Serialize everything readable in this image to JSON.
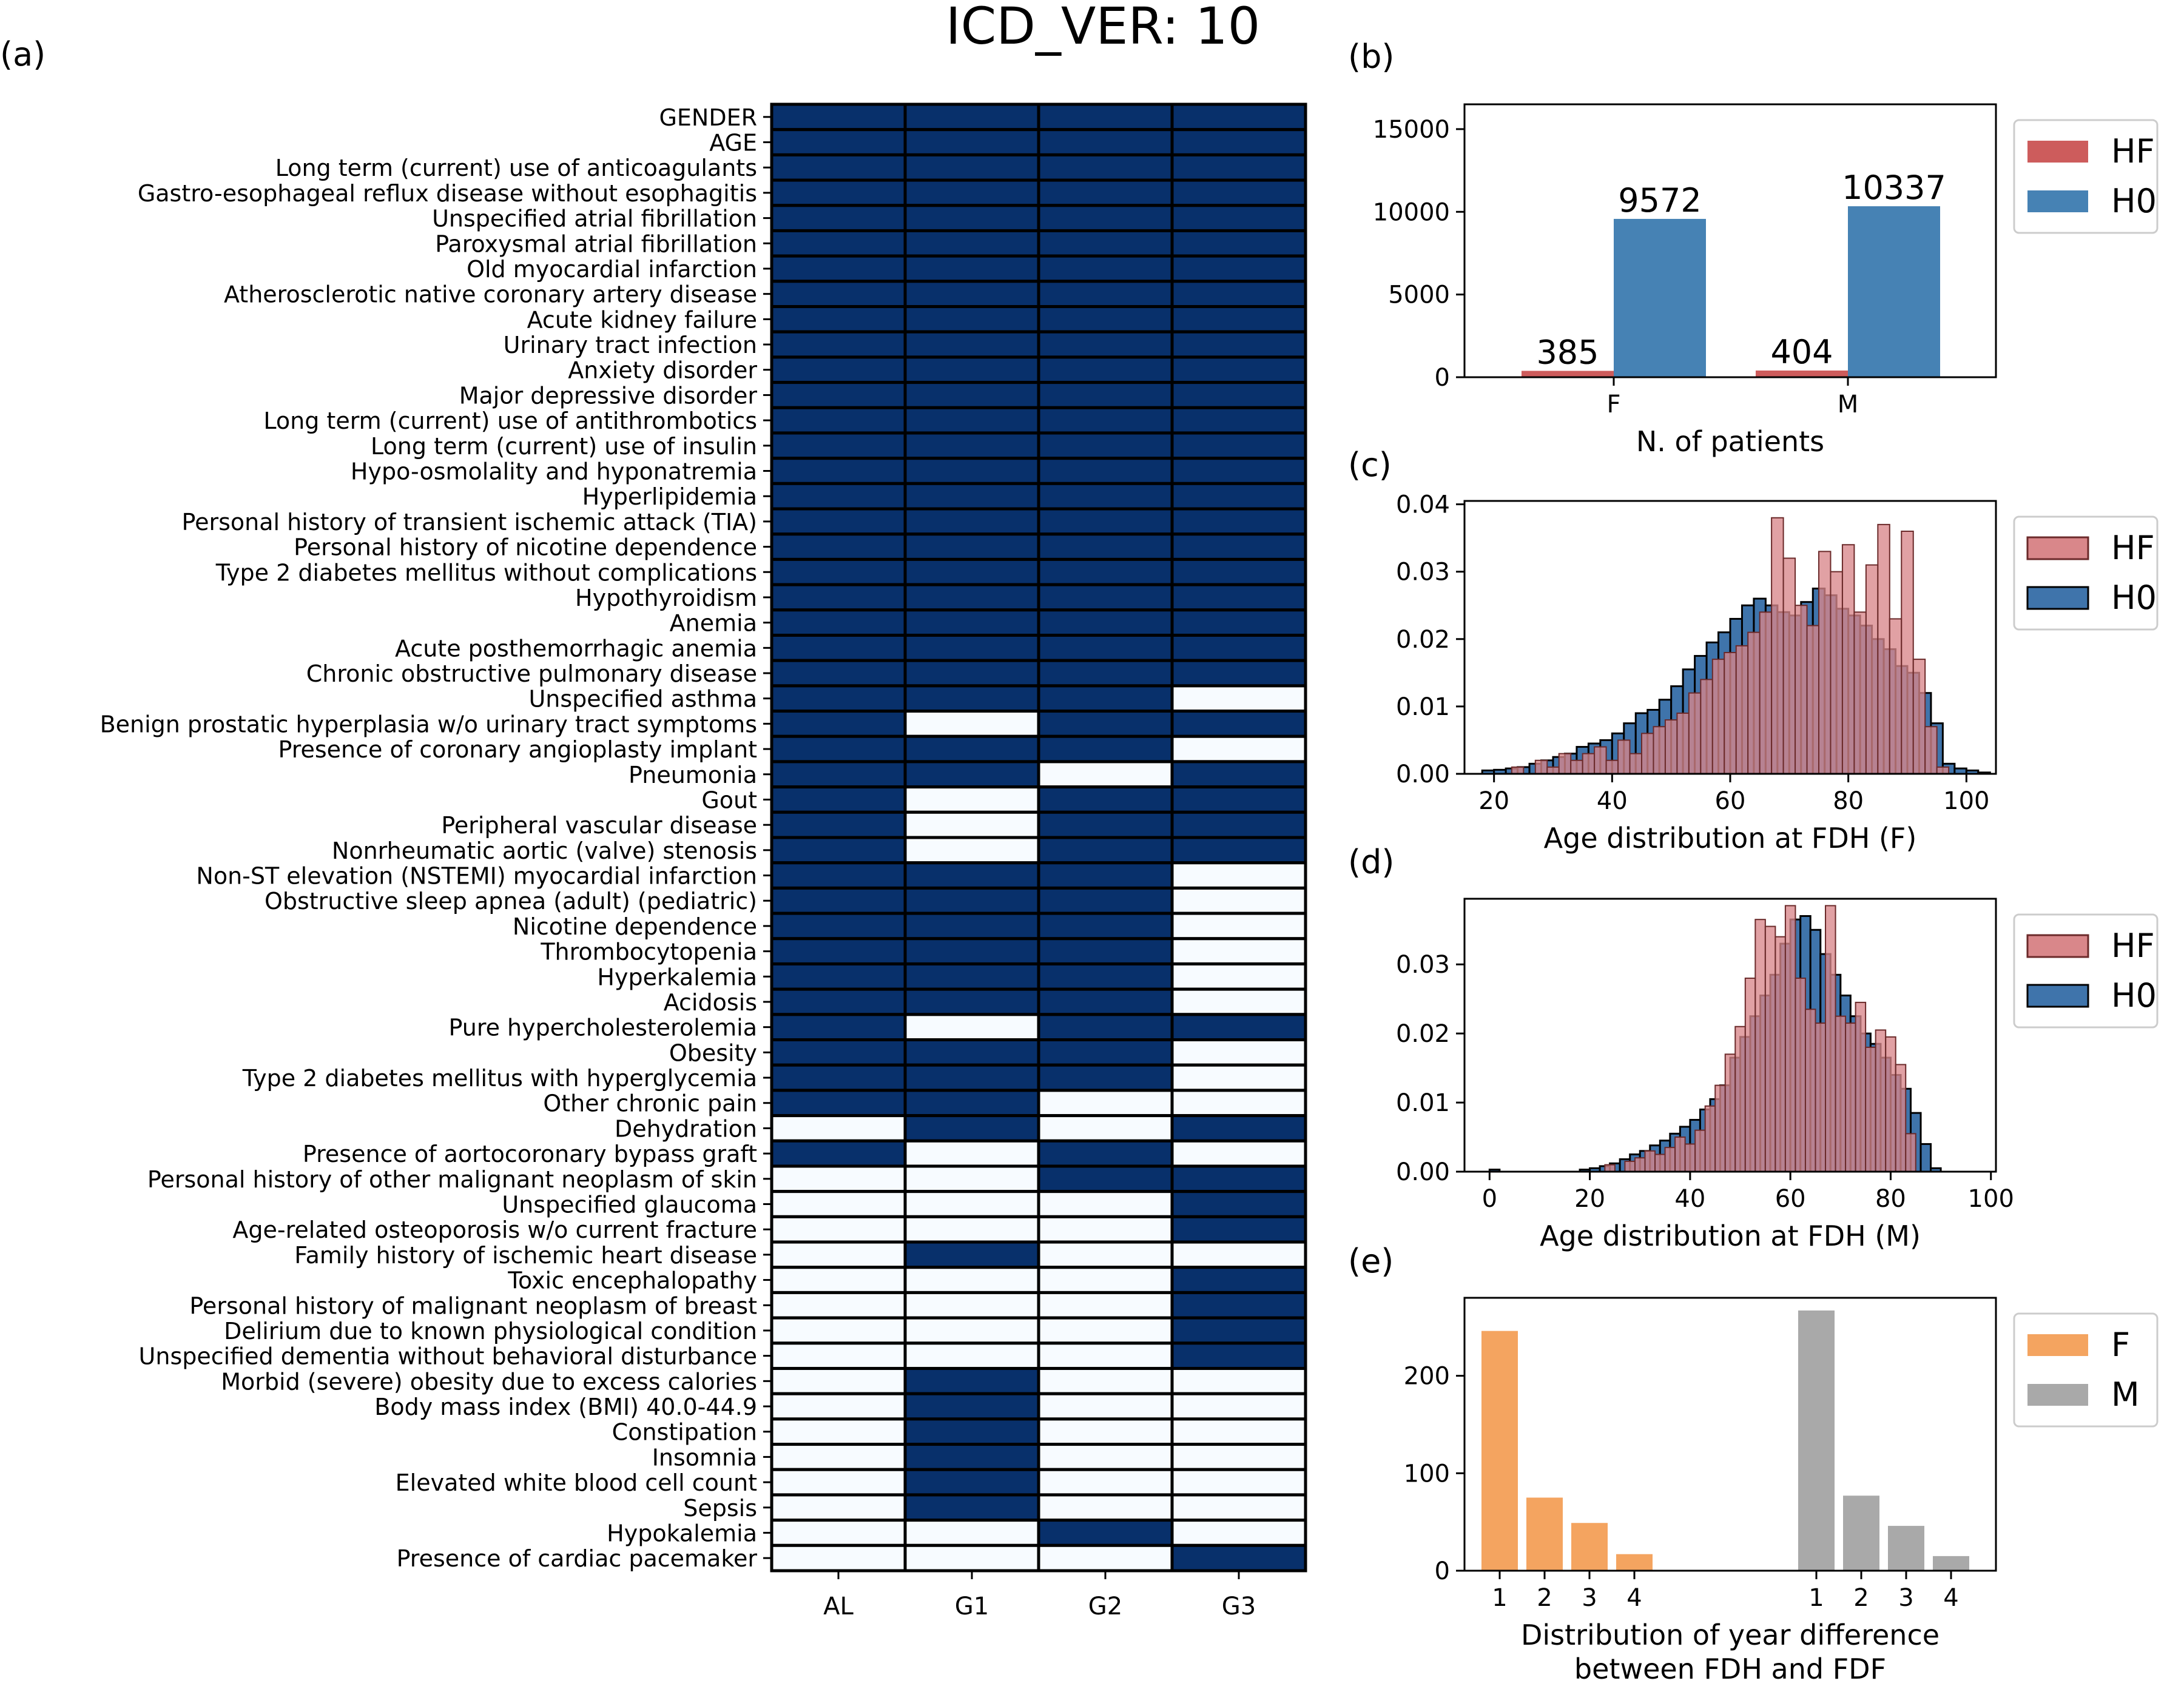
{
  "figure_title": "ICD_VER: 10",
  "panel_labels": {
    "a": "(a)",
    "b": "(b)",
    "c": "(c)",
    "d": "(d)",
    "e": "(e)"
  },
  "colors": {
    "dark_navy": "#08306b",
    "light": "#f7fbff",
    "hf_red": "#cd5c5c",
    "h0_blue": "#4682b4",
    "hf_hist": "#d9878a",
    "h0_hist": "#3f74ab",
    "f_orange": "#f4a460",
    "m_gray": "#a9a9a9"
  },
  "chart_data": [
    {
      "type": "heatmap",
      "panel": "(a)",
      "columns": [
        "AL",
        "G1",
        "G2",
        "G3"
      ],
      "rows": [
        {
          "label": "GENDER",
          "values": [
            1,
            1,
            1,
            1
          ]
        },
        {
          "label": "AGE",
          "values": [
            1,
            1,
            1,
            1
          ]
        },
        {
          "label": "Long term (current) use of anticoagulants",
          "values": [
            1,
            1,
            1,
            1
          ]
        },
        {
          "label": "Gastro-esophageal reflux disease without esophagitis",
          "values": [
            1,
            1,
            1,
            1
          ]
        },
        {
          "label": "Unspecified atrial fibrillation",
          "values": [
            1,
            1,
            1,
            1
          ]
        },
        {
          "label": "Paroxysmal atrial fibrillation",
          "values": [
            1,
            1,
            1,
            1
          ]
        },
        {
          "label": "Old myocardial infarction",
          "values": [
            1,
            1,
            1,
            1
          ]
        },
        {
          "label": "Atherosclerotic native coronary artery disease",
          "values": [
            1,
            1,
            1,
            1
          ]
        },
        {
          "label": "Acute kidney failure",
          "values": [
            1,
            1,
            1,
            1
          ]
        },
        {
          "label": "Urinary tract infection",
          "values": [
            1,
            1,
            1,
            1
          ]
        },
        {
          "label": "Anxiety disorder",
          "values": [
            1,
            1,
            1,
            1
          ]
        },
        {
          "label": "Major depressive disorder",
          "values": [
            1,
            1,
            1,
            1
          ]
        },
        {
          "label": "Long term (current) use of antithrombotics",
          "values": [
            1,
            1,
            1,
            1
          ]
        },
        {
          "label": "Long term (current) use of insulin",
          "values": [
            1,
            1,
            1,
            1
          ]
        },
        {
          "label": "Hypo-osmolality and hyponatremia",
          "values": [
            1,
            1,
            1,
            1
          ]
        },
        {
          "label": "Hyperlipidemia",
          "values": [
            1,
            1,
            1,
            1
          ]
        },
        {
          "label": "Personal history of transient ischemic attack (TIA)",
          "values": [
            1,
            1,
            1,
            1
          ]
        },
        {
          "label": "Personal history of nicotine dependence",
          "values": [
            1,
            1,
            1,
            1
          ]
        },
        {
          "label": "Type 2 diabetes mellitus without complications",
          "values": [
            1,
            1,
            1,
            1
          ]
        },
        {
          "label": "Hypothyroidism",
          "values": [
            1,
            1,
            1,
            1
          ]
        },
        {
          "label": "Anemia",
          "values": [
            1,
            1,
            1,
            1
          ]
        },
        {
          "label": "Acute posthemorrhagic anemia",
          "values": [
            1,
            1,
            1,
            1
          ]
        },
        {
          "label": "Chronic obstructive pulmonary disease",
          "values": [
            1,
            1,
            1,
            1
          ]
        },
        {
          "label": "Unspecified asthma",
          "values": [
            1,
            1,
            1,
            0
          ]
        },
        {
          "label": "Benign prostatic hyperplasia w/o urinary tract symptoms",
          "values": [
            1,
            0,
            1,
            1
          ]
        },
        {
          "label": "Presence of coronary angioplasty implant",
          "values": [
            1,
            1,
            1,
            0
          ]
        },
        {
          "label": "Pneumonia",
          "values": [
            1,
            1,
            0,
            1
          ]
        },
        {
          "label": "Gout",
          "values": [
            1,
            0,
            1,
            1
          ]
        },
        {
          "label": "Peripheral vascular disease",
          "values": [
            1,
            0,
            1,
            1
          ]
        },
        {
          "label": "Nonrheumatic aortic (valve) stenosis",
          "values": [
            1,
            0,
            1,
            1
          ]
        },
        {
          "label": "Non-ST elevation (NSTEMI) myocardial infarction",
          "values": [
            1,
            1,
            1,
            0
          ]
        },
        {
          "label": "Obstructive sleep apnea (adult) (pediatric)",
          "values": [
            1,
            1,
            1,
            0
          ]
        },
        {
          "label": "Nicotine dependence",
          "values": [
            1,
            1,
            1,
            0
          ]
        },
        {
          "label": "Thrombocytopenia",
          "values": [
            1,
            1,
            1,
            0
          ]
        },
        {
          "label": "Hyperkalemia",
          "values": [
            1,
            1,
            1,
            0
          ]
        },
        {
          "label": "Acidosis",
          "values": [
            1,
            1,
            1,
            0
          ]
        },
        {
          "label": "Pure hypercholesterolemia",
          "values": [
            1,
            0,
            1,
            1
          ]
        },
        {
          "label": "Obesity",
          "values": [
            1,
            1,
            1,
            0
          ]
        },
        {
          "label": "Type 2 diabetes mellitus with hyperglycemia",
          "values": [
            1,
            1,
            1,
            0
          ]
        },
        {
          "label": "Other chronic pain",
          "values": [
            1,
            1,
            0,
            0
          ]
        },
        {
          "label": "Dehydration",
          "values": [
            0,
            1,
            0,
            1
          ]
        },
        {
          "label": "Presence of aortocoronary bypass graft",
          "values": [
            1,
            0,
            1,
            0
          ]
        },
        {
          "label": "Personal history of other malignant neoplasm of skin",
          "values": [
            0,
            0,
            1,
            1
          ]
        },
        {
          "label": "Unspecified glaucoma",
          "values": [
            0,
            0,
            0,
            1
          ]
        },
        {
          "label": "Age-related osteoporosis w/o current fracture",
          "values": [
            0,
            0,
            0,
            1
          ]
        },
        {
          "label": "Family history of ischemic heart disease",
          "values": [
            0,
            1,
            0,
            0
          ]
        },
        {
          "label": "Toxic encephalopathy",
          "values": [
            0,
            0,
            0,
            1
          ]
        },
        {
          "label": "Personal history of malignant neoplasm of breast",
          "values": [
            0,
            0,
            0,
            1
          ]
        },
        {
          "label": "Delirium due to known physiological condition",
          "values": [
            0,
            0,
            0,
            1
          ]
        },
        {
          "label": "Unspecified dementia without behavioral disturbance",
          "values": [
            0,
            0,
            0,
            1
          ]
        },
        {
          "label": "Morbid (severe) obesity due to excess calories",
          "values": [
            0,
            1,
            0,
            0
          ]
        },
        {
          "label": "Body mass index (BMI) 40.0-44.9",
          "values": [
            0,
            1,
            0,
            0
          ]
        },
        {
          "label": "Constipation",
          "values": [
            0,
            1,
            0,
            0
          ]
        },
        {
          "label": "Insomnia",
          "values": [
            0,
            1,
            0,
            0
          ]
        },
        {
          "label": "Elevated white blood cell count",
          "values": [
            0,
            1,
            0,
            0
          ]
        },
        {
          "label": "Sepsis",
          "values": [
            0,
            1,
            0,
            0
          ]
        },
        {
          "label": "Hypokalemia",
          "values": [
            0,
            0,
            1,
            0
          ]
        },
        {
          "label": "Presence of cardiac pacemaker",
          "values": [
            0,
            0,
            0,
            1
          ]
        }
      ]
    },
    {
      "type": "bar",
      "panel": "(b)",
      "categories": [
        "F",
        "M"
      ],
      "series": [
        {
          "name": "HF",
          "values": [
            385,
            404
          ]
        },
        {
          "name": "H0",
          "values": [
            9572,
            10337
          ]
        }
      ],
      "data_labels": [
        [
          "385",
          "404"
        ],
        [
          "9572",
          "10337"
        ]
      ],
      "xlabel": "N. of patients",
      "ylim": [
        0,
        16500
      ],
      "yticks": [
        0,
        5000,
        10000,
        15000
      ],
      "legend": "outside right"
    },
    {
      "type": "histogram",
      "panel": "(c)",
      "xlabel": "Age distribution at FDH (F)",
      "xlim": [
        15,
        105
      ],
      "ylim": [
        0,
        0.0405
      ],
      "xticks": [
        20,
        40,
        60,
        80,
        100
      ],
      "yticks": [
        0.0,
        0.01,
        0.02,
        0.03,
        0.04
      ],
      "ytick_labels": [
        "0.00",
        "0.01",
        "0.02",
        "0.03",
        "0.04"
      ],
      "legend": "outside right",
      "series": [
        {
          "name": "H0",
          "bin_start": 18,
          "bin_width": 2,
          "values": [
            0.0005,
            0.0006,
            0.0008,
            0.001,
            0.0015,
            0.002,
            0.0025,
            0.003,
            0.004,
            0.0045,
            0.005,
            0.006,
            0.0075,
            0.009,
            0.0095,
            0.011,
            0.013,
            0.0155,
            0.0175,
            0.0195,
            0.021,
            0.023,
            0.025,
            0.026,
            0.025,
            0.024,
            0.0235,
            0.0255,
            0.0275,
            0.0265,
            0.0245,
            0.0235,
            0.022,
            0.02,
            0.0185,
            0.016,
            0.015,
            0.012,
            0.0075,
            0.0015,
            0.0008,
            0.0005,
            0.0002
          ]
        },
        {
          "name": "HF",
          "bin_start": 19,
          "bin_width": 2,
          "values": [
            0,
            0,
            0.001,
            0,
            0.002,
            0.001,
            0.003,
            0.002,
            0.003,
            0.004,
            0.002,
            0.005,
            0.003,
            0.006,
            0.007,
            0.008,
            0.009,
            0.012,
            0.014,
            0.017,
            0.018,
            0.019,
            0.021,
            0.024,
            0.038,
            0.032,
            0.025,
            0.022,
            0.033,
            0.03,
            0.034,
            0.024,
            0.031,
            0.037,
            0.023,
            0.036,
            0.017,
            0.007,
            0.001,
            0,
            0,
            0
          ]
        }
      ]
    },
    {
      "type": "histogram",
      "panel": "(d)",
      "xlabel": "Age distribution at FDH (M)",
      "xlim": [
        -5,
        101
      ],
      "ylim": [
        0,
        0.0395
      ],
      "xticks": [
        0,
        20,
        40,
        60,
        80,
        100
      ],
      "yticks": [
        0.0,
        0.01,
        0.02,
        0.03
      ],
      "ytick_labels": [
        "0.00",
        "0.01",
        "0.02",
        "0.03"
      ],
      "legend": "outside right",
      "series": [
        {
          "name": "H0",
          "bin_start": 0,
          "bin_width": 2,
          "values": [
            0.0003,
            0,
            0,
            0,
            0,
            0,
            0,
            0,
            0,
            0.0003,
            0.0005,
            0.0008,
            0.0012,
            0.0018,
            0.0025,
            0.003,
            0.0038,
            0.0045,
            0.0055,
            0.0065,
            0.0075,
            0.009,
            0.0105,
            0.0125,
            0.0165,
            0.0195,
            0.0225,
            0.0255,
            0.0285,
            0.033,
            0.0365,
            0.037,
            0.035,
            0.0315,
            0.0285,
            0.0255,
            0.0225,
            0.02,
            0.0185,
            0.0165,
            0.014,
            0.012,
            0.0085,
            0.004,
            0.0005
          ]
        },
        {
          "name": "HF",
          "bin_start": 21,
          "bin_width": 2,
          "values": [
            0,
            0.001,
            0,
            0.0015,
            0.002,
            0.003,
            0.0025,
            0.0035,
            0.005,
            0.004,
            0.006,
            0.0095,
            0.0125,
            0.017,
            0.021,
            0.028,
            0.0365,
            0.0355,
            0.034,
            0.0385,
            0.028,
            0.0235,
            0.0215,
            0.0385,
            0.0225,
            0.0215,
            0.0245,
            0.018,
            0.0205,
            0.0195,
            0.0155,
            0.0055
          ]
        }
      ]
    },
    {
      "type": "bar",
      "panel": "(e)",
      "groups": [
        {
          "name": "F",
          "categories": [
            "1",
            "2",
            "3",
            "4"
          ],
          "values": [
            246,
            75,
            49,
            17
          ]
        },
        {
          "name": "M",
          "categories": [
            "1",
            "2",
            "3",
            "4"
          ],
          "values": [
            267,
            77,
            46,
            15
          ]
        }
      ],
      "xlabel_lines": [
        "Distribution of year difference",
        "between FDH and FDF"
      ],
      "ylim": [
        0,
        280
      ],
      "yticks": [
        0,
        100,
        200
      ],
      "legend": "outside right"
    }
  ]
}
